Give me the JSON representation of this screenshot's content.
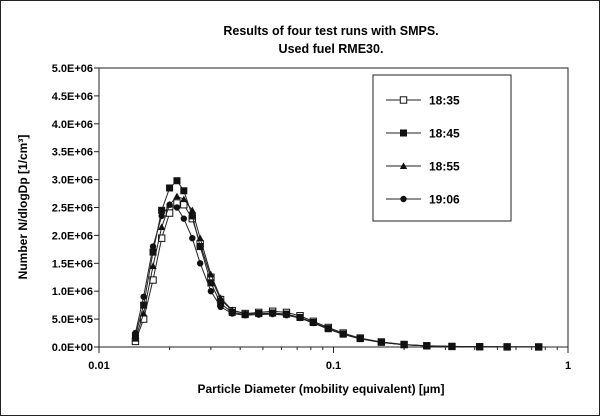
{
  "chart_data": {
    "type": "line",
    "title": [
      "Results of four test runs with SMPS.",
      "Used fuel RME30."
    ],
    "xlabel": "Particle Diameter (mobility equivalent) [µm]",
    "ylabel": "Number N/dlogDp [1/cm³]",
    "xscale": "log",
    "xlim": [
      0.01,
      1
    ],
    "ylim": [
      0,
      5000000
    ],
    "xticks": [
      {
        "value": 0.01,
        "label": "0.01"
      },
      {
        "value": 0.1,
        "label": "0.1"
      },
      {
        "value": 1,
        "label": "1"
      }
    ],
    "yticks": [
      {
        "value": 0,
        "label": "0.0E+00"
      },
      {
        "value": 500000,
        "label": "5.0E+05"
      },
      {
        "value": 1000000,
        "label": "1.0E+06"
      },
      {
        "value": 1500000,
        "label": "1.5E+06"
      },
      {
        "value": 2000000,
        "label": "2.0E+06"
      },
      {
        "value": 2500000,
        "label": "2.5E+06"
      },
      {
        "value": 3000000,
        "label": "3.0E+06"
      },
      {
        "value": 3500000,
        "label": "3.5E+06"
      },
      {
        "value": 4000000,
        "label": "4.0E+06"
      },
      {
        "value": 4500000,
        "label": "4.5E+06"
      },
      {
        "value": 5000000,
        "label": "5.0E+06"
      }
    ],
    "grid": false,
    "legend_position": "top-right",
    "series": [
      {
        "name": "18:35",
        "marker": "open-square",
        "x": [
          0.0143,
          0.0155,
          0.017,
          0.0185,
          0.02,
          0.0215,
          0.023,
          0.025,
          0.027,
          0.03,
          0.033,
          0.037,
          0.042,
          0.048,
          0.055,
          0.063,
          0.072,
          0.082,
          0.095,
          0.11,
          0.13,
          0.16,
          0.2,
          0.25,
          0.32,
          0.42,
          0.55,
          0.75
        ],
        "y": [
          100000,
          500000,
          1200000,
          1950000,
          2400000,
          2580000,
          2550000,
          2300000,
          1850000,
          1250000,
          850000,
          650000,
          600000,
          620000,
          640000,
          620000,
          560000,
          460000,
          350000,
          250000,
          160000,
          90000,
          45000,
          22000,
          10000,
          5000,
          2000,
          1000
        ]
      },
      {
        "name": "18:45",
        "marker": "filled-square",
        "x": [
          0.0143,
          0.0155,
          0.017,
          0.0185,
          0.02,
          0.0215,
          0.023,
          0.025,
          0.027,
          0.03,
          0.033,
          0.037,
          0.042,
          0.048,
          0.055,
          0.063,
          0.072,
          0.082,
          0.095,
          0.11,
          0.13,
          0.16,
          0.2,
          0.25,
          0.32,
          0.42,
          0.55,
          0.75
        ],
        "y": [
          200000,
          750000,
          1700000,
          2450000,
          2850000,
          2980000,
          2800000,
          2350000,
          1800000,
          1150000,
          780000,
          620000,
          580000,
          600000,
          610000,
          590000,
          530000,
          440000,
          330000,
          230000,
          150000,
          85000,
          42000,
          20000,
          9000,
          4500,
          2000,
          1000
        ]
      },
      {
        "name": "18:55",
        "marker": "filled-triangle",
        "x": [
          0.0143,
          0.0155,
          0.017,
          0.0185,
          0.02,
          0.0215,
          0.023,
          0.025,
          0.027,
          0.03,
          0.033,
          0.037,
          0.042,
          0.048,
          0.055,
          0.063,
          0.072,
          0.082,
          0.095,
          0.11,
          0.13,
          0.16,
          0.2,
          0.25,
          0.32,
          0.42,
          0.55,
          0.75
        ],
        "y": [
          150000,
          600000,
          1450000,
          2150000,
          2550000,
          2700000,
          2650000,
          2450000,
          1950000,
          1300000,
          880000,
          660000,
          600000,
          600000,
          600000,
          580000,
          520000,
          430000,
          320000,
          225000,
          145000,
          80000,
          40000,
          19000,
          8500,
          4000,
          1800,
          900
        ]
      },
      {
        "name": "19:06",
        "marker": "filled-circle",
        "x": [
          0.0143,
          0.0155,
          0.017,
          0.0185,
          0.02,
          0.0215,
          0.023,
          0.025,
          0.027,
          0.03,
          0.033,
          0.037,
          0.042,
          0.048,
          0.055,
          0.063,
          0.072,
          0.082,
          0.095,
          0.11,
          0.13,
          0.16,
          0.2,
          0.25,
          0.32,
          0.42,
          0.55,
          0.75
        ],
        "y": [
          250000,
          900000,
          1800000,
          2350000,
          2550000,
          2500000,
          2300000,
          1950000,
          1500000,
          1000000,
          720000,
          600000,
          570000,
          580000,
          590000,
          570000,
          520000,
          430000,
          325000,
          230000,
          150000,
          85000,
          42000,
          20000,
          9000,
          4500,
          2000,
          1000
        ]
      }
    ]
  }
}
